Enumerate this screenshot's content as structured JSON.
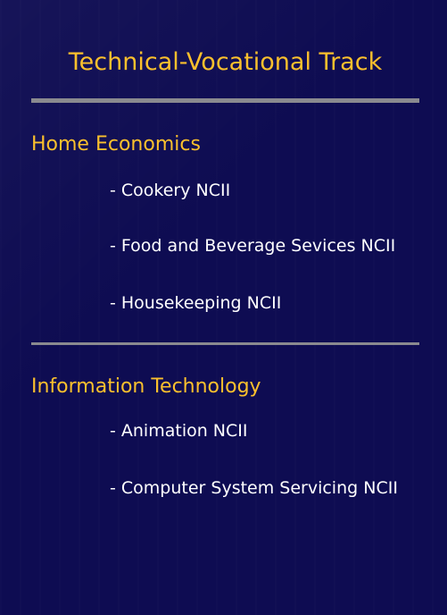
{
  "title": "Technical-Vocational Track",
  "sections": [
    {
      "heading": "Home Economics",
      "items": [
        "- Cookery NCII",
        "- Food and Beverage Sevices NCII",
        "- Housekeeping NCII"
      ]
    },
    {
      "heading": "Information Technology",
      "items": [
        "- Animation NCII",
        "- Computer System Servicing NCII"
      ]
    }
  ],
  "colors": {
    "background": "#0e0c52",
    "accent": "#fbc02d",
    "text": "#ffffff",
    "divider": "#8a8a8f"
  }
}
